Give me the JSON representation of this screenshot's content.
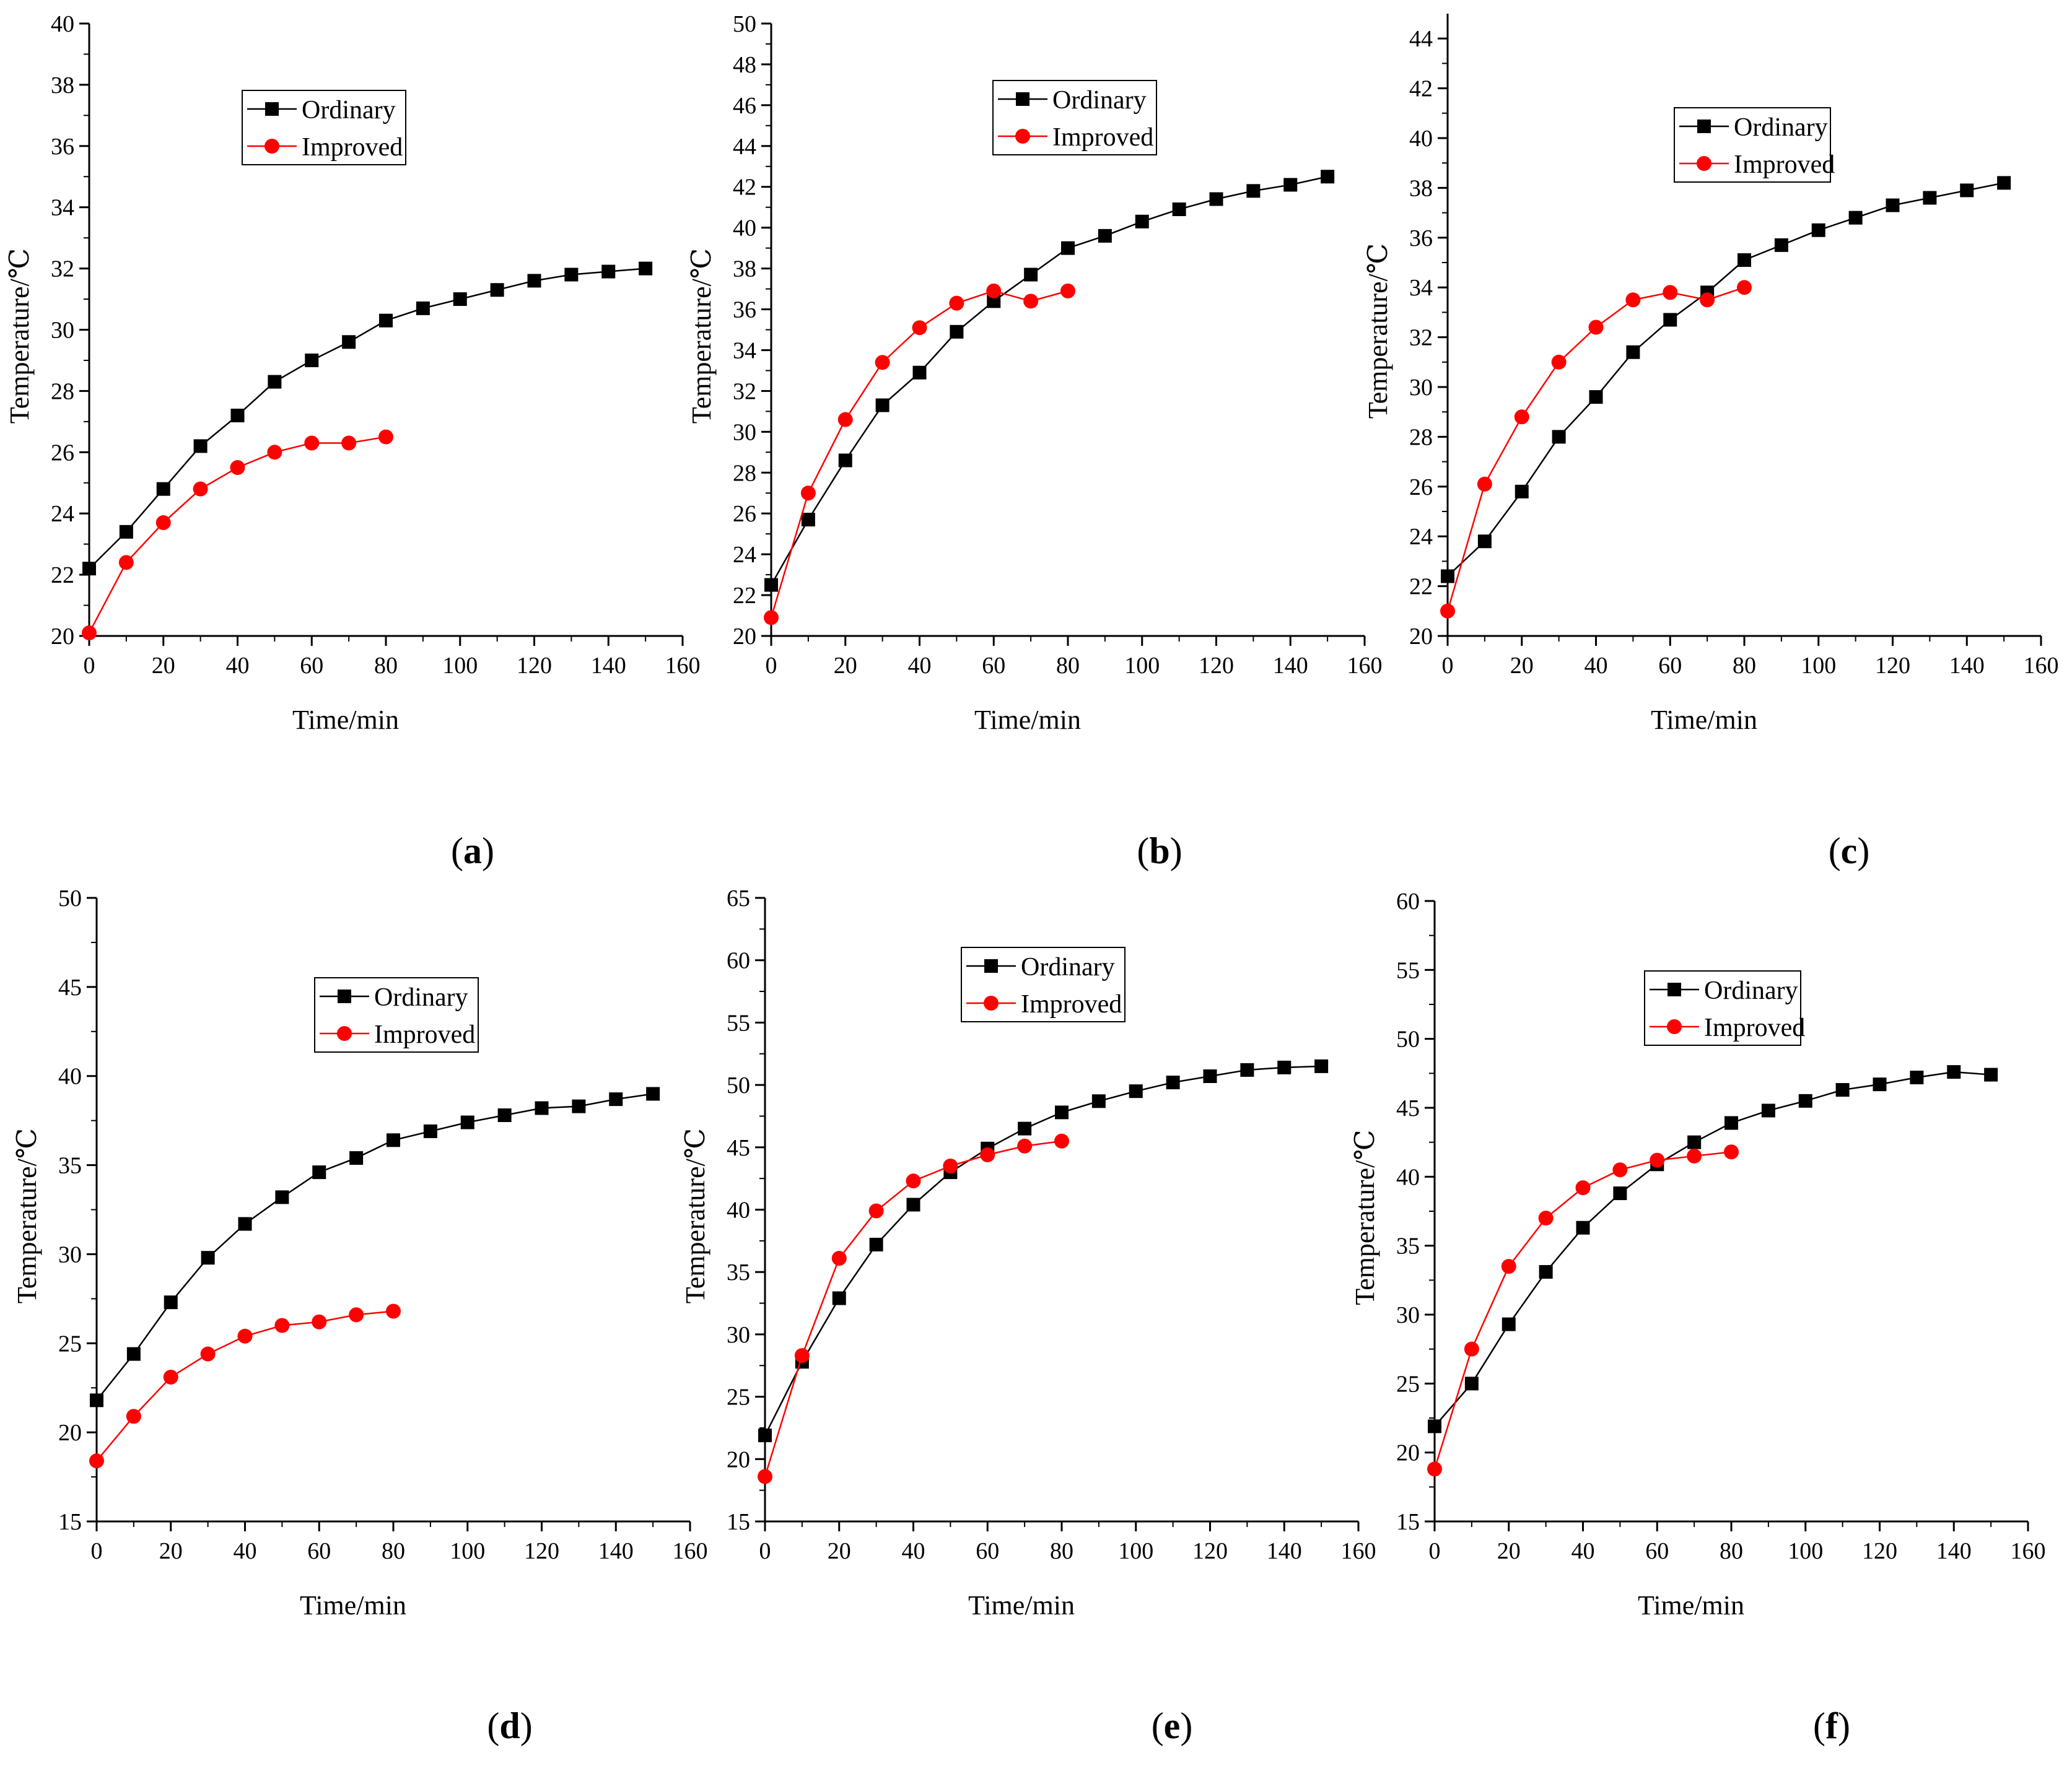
{
  "legend": {
    "ordinary": "Ordinary",
    "improved": "Improved"
  },
  "colors": {
    "ordinary": "#000000",
    "improved": "#ff0000"
  },
  "x_label": "Time/min",
  "y_label": "Temperature/℃",
  "chart_data": [
    {
      "type": "line",
      "panel": "a",
      "xlabel": "Time/min",
      "ylabel": "Temperature/℃",
      "xlim": [
        0,
        160
      ],
      "x_ticks": [
        0,
        20,
        40,
        60,
        80,
        100,
        120,
        140,
        160
      ],
      "ylim": [
        20,
        40
      ],
      "y_ticks": [
        20,
        22,
        24,
        26,
        28,
        30,
        32,
        34,
        36,
        38,
        40
      ],
      "legend_position": "top-center",
      "series": [
        {
          "name": "Ordinary",
          "marker": "square",
          "color": "#000000",
          "x": [
            0,
            10,
            20,
            30,
            40,
            50,
            60,
            70,
            80,
            90,
            100,
            110,
            120,
            130,
            140,
            150
          ],
          "y": [
            22.2,
            23.4,
            24.8,
            26.2,
            27.2,
            28.3,
            29.0,
            29.6,
            30.3,
            30.7,
            31.0,
            31.3,
            31.6,
            31.8,
            31.9,
            32.0
          ]
        },
        {
          "name": "Improved",
          "marker": "circle",
          "color": "#ff0000",
          "x": [
            0,
            10,
            20,
            30,
            40,
            50,
            60,
            70,
            80
          ],
          "y": [
            20.1,
            22.4,
            23.7,
            24.8,
            25.5,
            26.0,
            26.3,
            26.3,
            26.5
          ]
        }
      ]
    },
    {
      "type": "line",
      "panel": "b",
      "xlabel": "Time/min",
      "ylabel": "Temperature/℃",
      "xlim": [
        0,
        160
      ],
      "x_ticks": [
        0,
        20,
        40,
        60,
        80,
        100,
        120,
        140,
        160
      ],
      "ylim": [
        20,
        50
      ],
      "y_ticks": [
        20,
        22,
        24,
        26,
        28,
        30,
        32,
        34,
        36,
        38,
        40,
        42,
        44,
        46,
        48,
        50
      ],
      "legend_position": "top-center",
      "series": [
        {
          "name": "Ordinary",
          "marker": "square",
          "color": "#000000",
          "x": [
            0,
            10,
            20,
            30,
            40,
            50,
            60,
            70,
            80,
            90,
            100,
            110,
            120,
            130,
            140,
            150
          ],
          "y": [
            22.5,
            25.7,
            28.6,
            31.3,
            32.9,
            34.9,
            36.4,
            37.7,
            39.0,
            39.6,
            40.3,
            40.9,
            41.4,
            41.8,
            42.1,
            42.5
          ]
        },
        {
          "name": "Improved",
          "marker": "circle",
          "color": "#ff0000",
          "x": [
            0,
            10,
            20,
            30,
            40,
            50,
            60,
            70,
            80
          ],
          "y": [
            20.9,
            27.0,
            30.6,
            33.4,
            35.1,
            36.3,
            36.9,
            36.4,
            36.9
          ]
        }
      ]
    },
    {
      "type": "line",
      "panel": "c",
      "xlabel": "Time/min",
      "ylabel": "Temperature/℃",
      "xlim": [
        0,
        160
      ],
      "x_ticks": [
        0,
        20,
        40,
        60,
        80,
        100,
        120,
        140,
        160
      ],
      "ylim": [
        20,
        45
      ],
      "y_ticks": [
        20,
        22,
        24,
        26,
        28,
        30,
        32,
        34,
        36,
        38,
        40,
        42,
        44
      ],
      "legend_position": "top-center",
      "series": [
        {
          "name": "Ordinary",
          "marker": "square",
          "color": "#000000",
          "x": [
            0,
            10,
            20,
            30,
            40,
            50,
            60,
            70,
            80,
            90,
            100,
            110,
            120,
            130,
            140,
            150
          ],
          "y": [
            22.4,
            23.8,
            25.8,
            28.0,
            29.6,
            31.4,
            32.7,
            33.8,
            35.1,
            35.7,
            36.3,
            36.8,
            37.3,
            37.6,
            37.9,
            38.2
          ]
        },
        {
          "name": "Improved",
          "marker": "circle",
          "color": "#ff0000",
          "x": [
            0,
            10,
            20,
            30,
            40,
            50,
            60,
            70,
            80
          ],
          "y": [
            21.0,
            26.1,
            28.8,
            31.0,
            32.4,
            33.5,
            33.8,
            33.5,
            34.0
          ]
        }
      ]
    },
    {
      "type": "line",
      "panel": "d",
      "xlabel": "Time/min",
      "ylabel": "Temperature/℃",
      "xlim": [
        0,
        160
      ],
      "x_ticks": [
        0,
        20,
        40,
        60,
        80,
        100,
        120,
        140,
        160
      ],
      "ylim": [
        15,
        50
      ],
      "y_ticks": [
        15,
        20,
        25,
        30,
        35,
        40,
        45,
        50
      ],
      "legend_position": "top-center",
      "series": [
        {
          "name": "Ordinary",
          "marker": "square",
          "color": "#000000",
          "x": [
            0,
            10,
            20,
            30,
            40,
            50,
            60,
            70,
            80,
            90,
            100,
            110,
            120,
            130,
            140,
            150
          ],
          "y": [
            21.8,
            24.4,
            27.3,
            29.8,
            31.7,
            33.2,
            34.6,
            35.4,
            36.4,
            36.9,
            37.4,
            37.8,
            38.2,
            38.3,
            38.7,
            39.0
          ]
        },
        {
          "name": "Improved",
          "marker": "circle",
          "color": "#ff0000",
          "x": [
            0,
            10,
            20,
            30,
            40,
            50,
            60,
            70,
            80
          ],
          "y": [
            18.4,
            20.9,
            23.1,
            24.4,
            25.4,
            26.0,
            26.2,
            26.6,
            26.8
          ]
        }
      ]
    },
    {
      "type": "line",
      "panel": "e",
      "xlabel": "Time/min",
      "ylabel": "Temperature/℃",
      "xlim": [
        0,
        160
      ],
      "x_ticks": [
        0,
        20,
        40,
        60,
        80,
        100,
        120,
        140,
        160
      ],
      "ylim": [
        15,
        65
      ],
      "y_ticks": [
        15,
        20,
        25,
        30,
        35,
        40,
        45,
        50,
        55,
        60,
        65
      ],
      "legend_position": "top-center",
      "series": [
        {
          "name": "Ordinary",
          "marker": "square",
          "color": "#000000",
          "x": [
            0,
            10,
            20,
            30,
            40,
            50,
            60,
            70,
            80,
            90,
            100,
            110,
            120,
            130,
            140,
            150
          ],
          "y": [
            21.9,
            27.8,
            32.9,
            37.2,
            40.4,
            43.0,
            44.9,
            46.5,
            47.8,
            48.7,
            49.5,
            50.2,
            50.7,
            51.2,
            51.4,
            51.5
          ]
        },
        {
          "name": "Improved",
          "marker": "circle",
          "color": "#ff0000",
          "x": [
            0,
            10,
            20,
            30,
            40,
            50,
            60,
            70,
            80
          ],
          "y": [
            18.6,
            28.3,
            36.1,
            39.9,
            42.3,
            43.5,
            44.4,
            45.1,
            45.5
          ]
        }
      ]
    },
    {
      "type": "line",
      "panel": "f",
      "xlabel": "Time/min",
      "ylabel": "Temperature/℃",
      "xlim": [
        0,
        160
      ],
      "x_ticks": [
        0,
        20,
        40,
        60,
        80,
        100,
        120,
        140,
        160
      ],
      "ylim": [
        15,
        60
      ],
      "y_ticks": [
        15,
        20,
        25,
        30,
        35,
        40,
        45,
        50,
        55,
        60
      ],
      "legend_position": "top-center",
      "series": [
        {
          "name": "Ordinary",
          "marker": "square",
          "color": "#000000",
          "x": [
            0,
            10,
            20,
            30,
            40,
            50,
            60,
            70,
            80,
            90,
            100,
            110,
            120,
            130,
            140,
            150
          ],
          "y": [
            21.9,
            25.0,
            29.3,
            33.1,
            36.3,
            38.8,
            40.9,
            42.5,
            43.9,
            44.8,
            45.5,
            46.3,
            46.7,
            47.2,
            47.6,
            47.4
          ]
        },
        {
          "name": "Improved",
          "marker": "circle",
          "color": "#ff0000",
          "x": [
            0,
            10,
            20,
            30,
            40,
            50,
            60,
            70,
            80
          ],
          "y": [
            18.8,
            27.5,
            33.5,
            37.0,
            39.2,
            40.5,
            41.2,
            41.5,
            41.8
          ]
        }
      ]
    }
  ],
  "panel_labels": [
    {
      "open": "(",
      "letter": "a",
      "close": ")"
    },
    {
      "open": "(",
      "letter": "b",
      "close": ")"
    },
    {
      "open": "(",
      "letter": "c",
      "close": ")"
    },
    {
      "open": "(",
      "letter": "d",
      "close": ")"
    },
    {
      "open": "(",
      "letter": "e",
      "close": ")"
    },
    {
      "open": "(",
      "letter": "f",
      "close": ")"
    }
  ]
}
